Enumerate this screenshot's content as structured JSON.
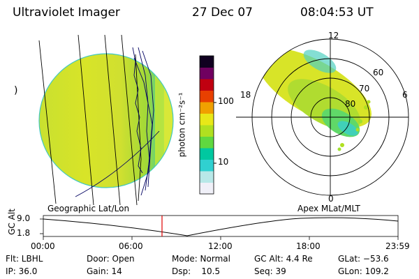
{
  "header": {
    "instrument": "Ultraviolet Imager",
    "date": "27 Dec 07",
    "time": "08:04:53 UT"
  },
  "disk": {
    "left_mark": ")",
    "caption": "Geographic Lat/Lon"
  },
  "colorbar": {
    "label": "photon cm⁻²s⁻¹",
    "ticks": [
      "100",
      "10"
    ],
    "colors": [
      "#f0f0f8",
      "#b8e8e8",
      "#30d0d0",
      "#00c8a0",
      "#60d840",
      "#b0e020",
      "#e8e818",
      "#f0a000",
      "#e84000",
      "#c00010",
      "#700060",
      "#100020"
    ]
  },
  "polar": {
    "caption": "Apex MLat/MLT",
    "mlt_labels": {
      "top": "12",
      "left": "18",
      "right": "6",
      "bottom": "0"
    },
    "lat_labels": [
      "60",
      "70",
      "80"
    ]
  },
  "timeline": {
    "ylabel": "GC Alt",
    "yticks": [
      "9.0",
      "1.8"
    ],
    "xticks": [
      "00:00",
      "06:00",
      "12:00",
      "18:00",
      "23:59"
    ]
  },
  "status": {
    "filter": "Flt: LBHL",
    "ip": "IP: 36.0",
    "door": "Door: Open",
    "gain": "Gain: 14",
    "mode": "Mode: Normal",
    "dsp": "Dsp:    10.5",
    "gc_alt": "GC Alt: 4.4 Re",
    "seq": "Seq: 39",
    "glat": "GLat: −53.6",
    "glon": "GLon: 109.2"
  }
}
